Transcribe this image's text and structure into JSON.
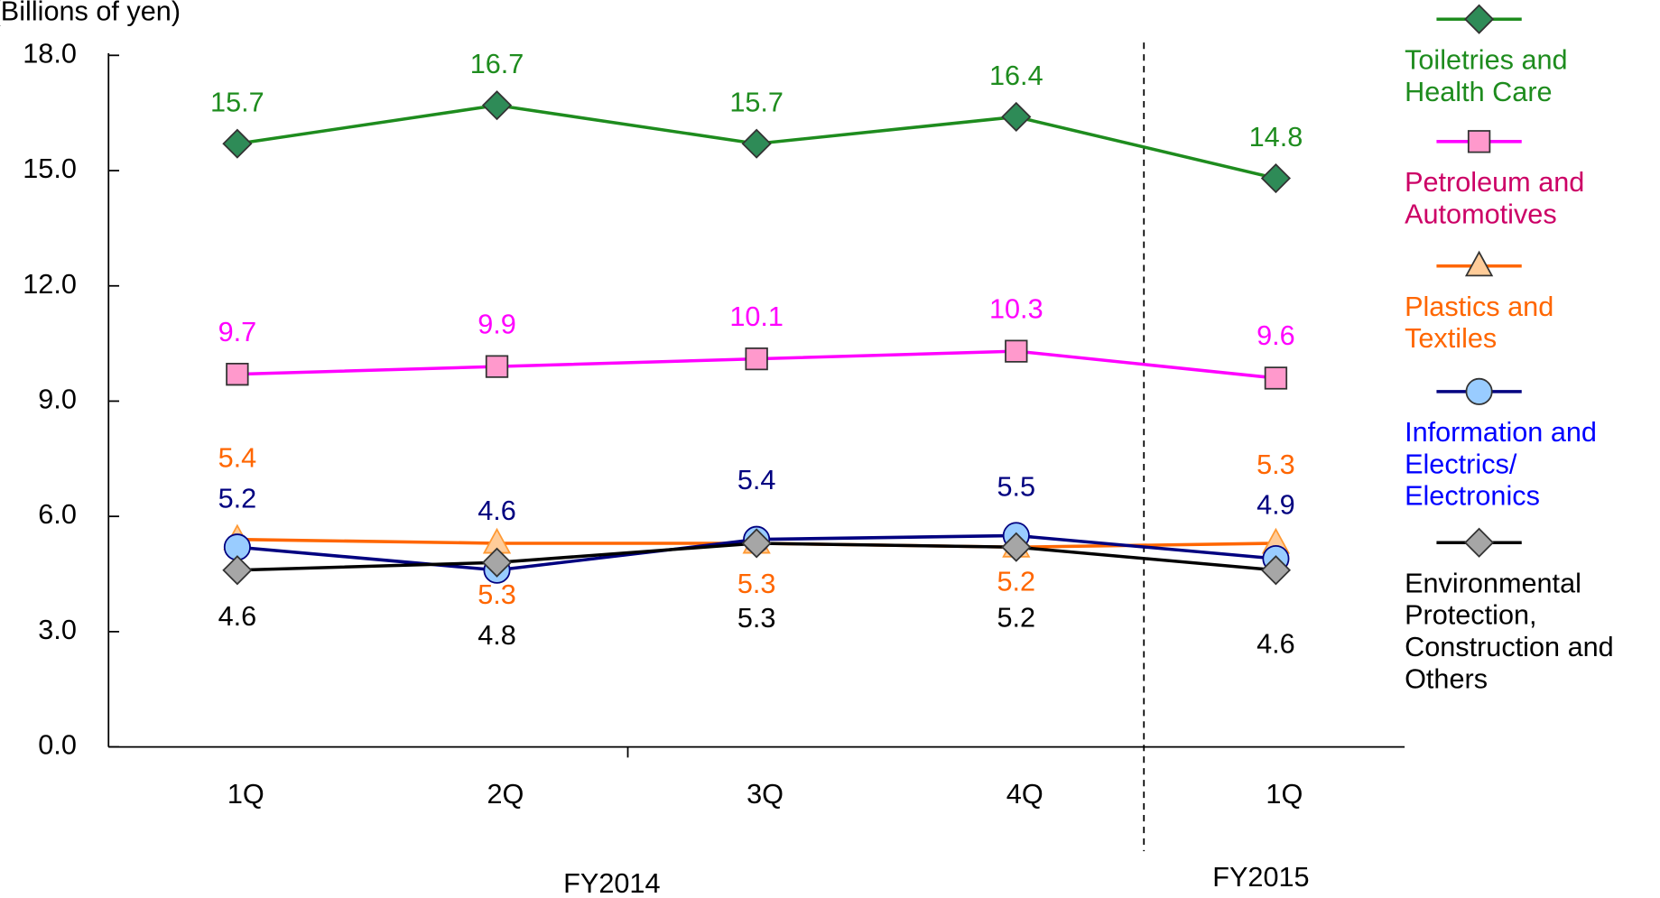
{
  "chart_data": {
    "type": "line",
    "ylabel": "(Billions of yen)",
    "categories": [
      "1Q",
      "2Q",
      "3Q",
      "4Q",
      "1Q"
    ],
    "groups": [
      "FY2014",
      "FY2015"
    ],
    "ylim": [
      0,
      18
    ],
    "yticks": [
      {
        "value": 0,
        "label": "0.0"
      },
      {
        "value": 3,
        "label": "3.0"
      },
      {
        "value": 6,
        "label": "6.0"
      },
      {
        "value": 9,
        "label": "9.0"
      },
      {
        "value": 12,
        "label": "12.0"
      },
      {
        "value": 15,
        "label": "15.0"
      },
      {
        "value": 18,
        "label": "18.0"
      }
    ],
    "series": [
      {
        "name": "Toiletries and Health Care",
        "color": "#1e8c1e",
        "values": [
          15.7,
          16.7,
          15.7,
          16.4,
          14.8
        ]
      },
      {
        "name": "Petroleum and Automotives",
        "color": "#ff00ff",
        "values": [
          9.7,
          9.9,
          10.1,
          10.3,
          9.6
        ]
      },
      {
        "name": "Plastics and Textiles",
        "color": "#ff6600",
        "values": [
          5.4,
          5.3,
          5.3,
          5.2,
          5.3
        ]
      },
      {
        "name": "Information and Electrics/ Electronics",
        "color": "#000080",
        "values": [
          5.2,
          4.6,
          5.4,
          5.5,
          4.9
        ]
      },
      {
        "name": "Environmental Protection, Construction and Others",
        "color": "#000000",
        "values": [
          4.6,
          4.8,
          5.3,
          5.2,
          4.6
        ]
      }
    ]
  }
}
